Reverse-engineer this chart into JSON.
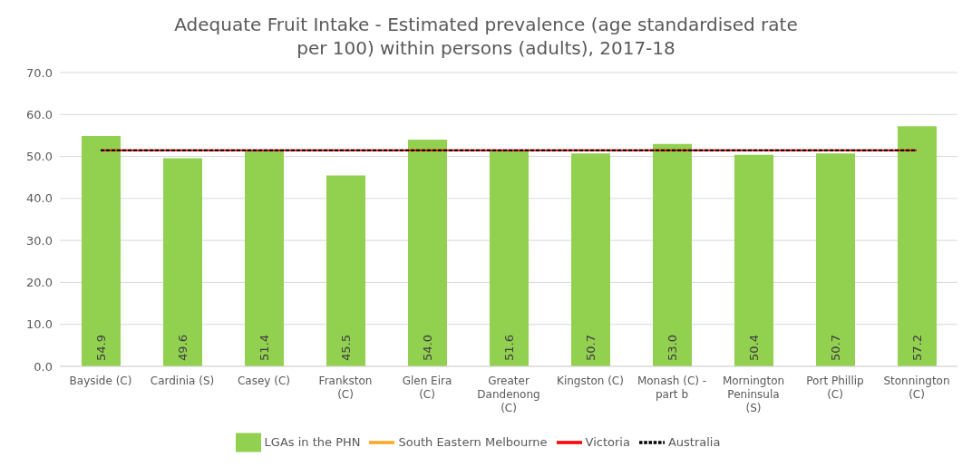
{
  "chart_data": {
    "type": "bar",
    "title": "Adequate Fruit Intake - Estimated prevalence (age standardised rate per 100) within persons (adults), 2017-18",
    "categories": [
      "Bayside (C)",
      "Cardinia (S)",
      "Casey (C)",
      "Frankston (C)",
      "Glen Eira (C)",
      "Greater Dandenong (C)",
      "Kingston (C)",
      "Monash (C) - part b",
      "Mornington Peninsula (S)",
      "Port Phillip (C)",
      "Stonnington (C)"
    ],
    "series": [
      {
        "name": "LGAs in the PHN",
        "color": "#92d050",
        "values": [
          54.9,
          49.6,
          51.4,
          45.5,
          54.0,
          51.6,
          50.7,
          53.0,
          50.4,
          50.7,
          57.2
        ],
        "value_labels": [
          "54.9",
          "49.6",
          "51.4",
          "45.5",
          "54.0",
          "51.6",
          "50.7",
          "53.0",
          "50.4",
          "50.7",
          "57.2"
        ]
      },
      {
        "name": "South Eastern Melbourne",
        "type": "line",
        "color": "#ffa726",
        "line_style": "solid",
        "values": [
          null,
          null,
          null,
          null,
          null,
          null,
          null,
          null,
          null,
          null,
          null
        ]
      },
      {
        "name": "Victoria",
        "type": "line",
        "color": "#ff0000",
        "line_style": "solid",
        "values": [
          51.5,
          51.5,
          51.5,
          51.5,
          51.5,
          51.5,
          51.5,
          51.5,
          51.5,
          51.5,
          51.5
        ]
      },
      {
        "name": "Australia",
        "type": "line",
        "color": "#000000",
        "line_style": "dashed",
        "values": [
          51.5,
          51.5,
          51.5,
          51.5,
          51.5,
          51.5,
          51.5,
          51.5,
          51.5,
          51.5,
          51.5
        ]
      }
    ],
    "ylim": [
      0,
      70
    ],
    "yticks": [
      {
        "value": 0,
        "label": "0.0"
      },
      {
        "value": 10,
        "label": "10.0"
      },
      {
        "value": 20,
        "label": "20.0"
      },
      {
        "value": 30,
        "label": "30.0"
      },
      {
        "value": 40,
        "label": "40.0"
      },
      {
        "value": 50,
        "label": "50.0"
      },
      {
        "value": 60,
        "label": "60.0"
      },
      {
        "value": 70,
        "label": "70.0"
      }
    ],
    "grid": "y",
    "legend": "bottom",
    "marker": "none"
  }
}
